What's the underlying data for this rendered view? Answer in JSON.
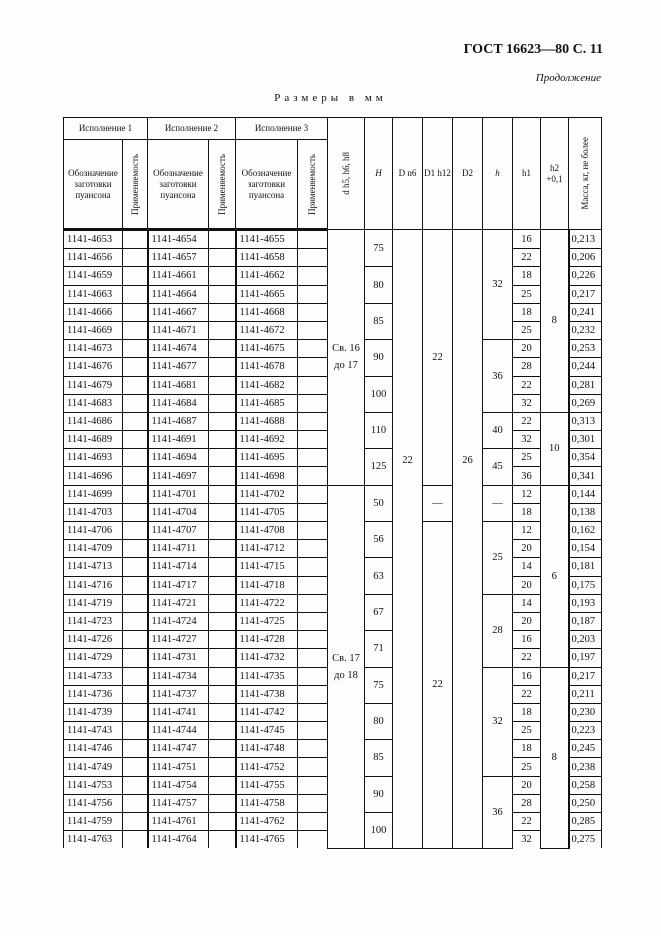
{
  "header": {
    "title": "ГОСТ 16623—80 С. 11",
    "continuation": "Продолжение",
    "caption": "Размеры в мм"
  },
  "table": {
    "groups": [
      "Исполнение 1",
      "Исполнение 2",
      "Исполнение 3"
    ],
    "code_header": "Обозначение заготовки пуансона",
    "applicability_header": "Применяемость",
    "d_header": "d h5, h6, h8",
    "H_header": "H",
    "D_header": "D n6",
    "D1_header": "D1 h12",
    "D2_header": "D2",
    "h_header": "h",
    "h1_header": "h1",
    "h2_header": "h2 +0,1",
    "mass_header": "Масса, кг, не более",
    "rows": [
      [
        "1141-4653",
        "1141-4654",
        "1141-4655",
        "16",
        "0,213"
      ],
      [
        "1141-4656",
        "1141-4657",
        "1141-4658",
        "22",
        "0,206"
      ],
      [
        "1141-4659",
        "1141-4661",
        "1141-4662",
        "18",
        "0,226"
      ],
      [
        "1141-4663",
        "1141-4664",
        "1141-4665",
        "25",
        "0,217"
      ],
      [
        "1141-4666",
        "1141-4667",
        "1141-4668",
        "18",
        "0,241"
      ],
      [
        "1141-4669",
        "1141-4671",
        "1141-4672",
        "25",
        "0,232"
      ],
      [
        "1141-4673",
        "1141-4674",
        "1141-4675",
        "20",
        "0,253"
      ],
      [
        "1141-4676",
        "1141-4677",
        "1141-4678",
        "28",
        "0,244"
      ],
      [
        "1141-4679",
        "1141-4681",
        "1141-4682",
        "22",
        "0,281"
      ],
      [
        "1141-4683",
        "1141-4684",
        "1141-4685",
        "32",
        "0,269"
      ],
      [
        "1141-4686",
        "1141-4687",
        "1141-4688",
        "22",
        "0,313"
      ],
      [
        "1141-4689",
        "1141-4691",
        "1141-4692",
        "32",
        "0,301"
      ],
      [
        "1141-4693",
        "1141-4694",
        "1141-4695",
        "25",
        "0,354"
      ],
      [
        "1141-4696",
        "1141-4697",
        "1141-4698",
        "36",
        "0,341"
      ],
      [
        "1141-4699",
        "1141-4701",
        "1141-4702",
        "12",
        "0,144"
      ],
      [
        "1141-4703",
        "1141-4704",
        "1141-4705",
        "18",
        "0,138"
      ],
      [
        "1141-4706",
        "1141-4707",
        "1141-4708",
        "12",
        "0,162"
      ],
      [
        "1141-4709",
        "1141-4711",
        "1141-4712",
        "20",
        "0,154"
      ],
      [
        "1141-4713",
        "1141-4714",
        "1141-4715",
        "14",
        "0,181"
      ],
      [
        "1141-4716",
        "1141-4717",
        "1141-4718",
        "20",
        "0,175"
      ],
      [
        "1141-4719",
        "1141-4721",
        "1141-4722",
        "14",
        "0,193"
      ],
      [
        "1141-4723",
        "1141-4724",
        "1141-4725",
        "20",
        "0,187"
      ],
      [
        "1141-4726",
        "1141-4727",
        "1141-4728",
        "16",
        "0,203"
      ],
      [
        "1141-4729",
        "1141-4731",
        "1141-4732",
        "22",
        "0,197"
      ],
      [
        "1141-4733",
        "1141-4734",
        "1141-4735",
        "16",
        "0,217"
      ],
      [
        "1141-4736",
        "1141-4737",
        "1141-4738",
        "22",
        "0,211"
      ],
      [
        "1141-4739",
        "1141-4741",
        "1141-4742",
        "18",
        "0,230"
      ],
      [
        "1141-4743",
        "1141-4744",
        "1141-4745",
        "25",
        "0,223"
      ],
      [
        "1141-4746",
        "1141-4747",
        "1141-4748",
        "18",
        "0,245"
      ],
      [
        "1141-4749",
        "1141-4751",
        "1141-4752",
        "25",
        "0,238"
      ],
      [
        "1141-4753",
        "1141-4754",
        "1141-4755",
        "20",
        "0,258"
      ],
      [
        "1141-4756",
        "1141-4757",
        "1141-4758",
        "28",
        "0,250"
      ],
      [
        "1141-4759",
        "1141-4761",
        "1141-4762",
        "22",
        "0,285"
      ],
      [
        "1141-4763",
        "1141-4764",
        "1141-4765",
        "32",
        "0,275"
      ]
    ],
    "merged": {
      "d": [
        {
          "v": "Св. 16 до 17",
          "span": 14
        },
        {
          "v": "Св. 17 до 18",
          "span": 20
        }
      ],
      "H": [
        {
          "v": "75",
          "span": 2
        },
        {
          "v": "80",
          "span": 2
        },
        {
          "v": "85",
          "span": 2
        },
        {
          "v": "90",
          "span": 2
        },
        {
          "v": "100",
          "span": 2
        },
        {
          "v": "110",
          "span": 2
        },
        {
          "v": "125",
          "span": 2
        },
        {
          "v": "50",
          "span": 2
        },
        {
          "v": "56",
          "span": 2
        },
        {
          "v": "63",
          "span": 2
        },
        {
          "v": "67",
          "span": 2
        },
        {
          "v": "71",
          "span": 2
        },
        {
          "v": "75",
          "span": 2
        },
        {
          "v": "80",
          "span": 2
        },
        {
          "v": "85",
          "span": 2
        },
        {
          "v": "90",
          "span": 2
        },
        {
          "v": "100",
          "span": 2
        }
      ],
      "D": [
        {
          "v": "22",
          "span": 34
        }
      ],
      "D1": [
        {
          "v": "22",
          "span": 14
        },
        {
          "v": "—",
          "span": 2
        },
        {
          "v": "22",
          "span": 18
        }
      ],
      "D2": [
        {
          "v": "26",
          "span": 34
        }
      ],
      "h": [
        {
          "v": "32",
          "span": 6
        },
        {
          "v": "36",
          "span": 4
        },
        {
          "v": "40",
          "span": 2
        },
        {
          "v": "45",
          "span": 2
        },
        {
          "v": "—",
          "span": 2
        },
        {
          "v": "25",
          "span": 4
        },
        {
          "v": "28",
          "span": 4
        },
        {
          "v": "32",
          "span": 6
        },
        {
          "v": "36",
          "span": 4
        }
      ],
      "h2": [
        {
          "v": "8",
          "span": 10
        },
        {
          "v": "10",
          "span": 4
        },
        {
          "v": "6",
          "span": 10
        },
        {
          "v": "8",
          "span": 10
        }
      ]
    }
  }
}
